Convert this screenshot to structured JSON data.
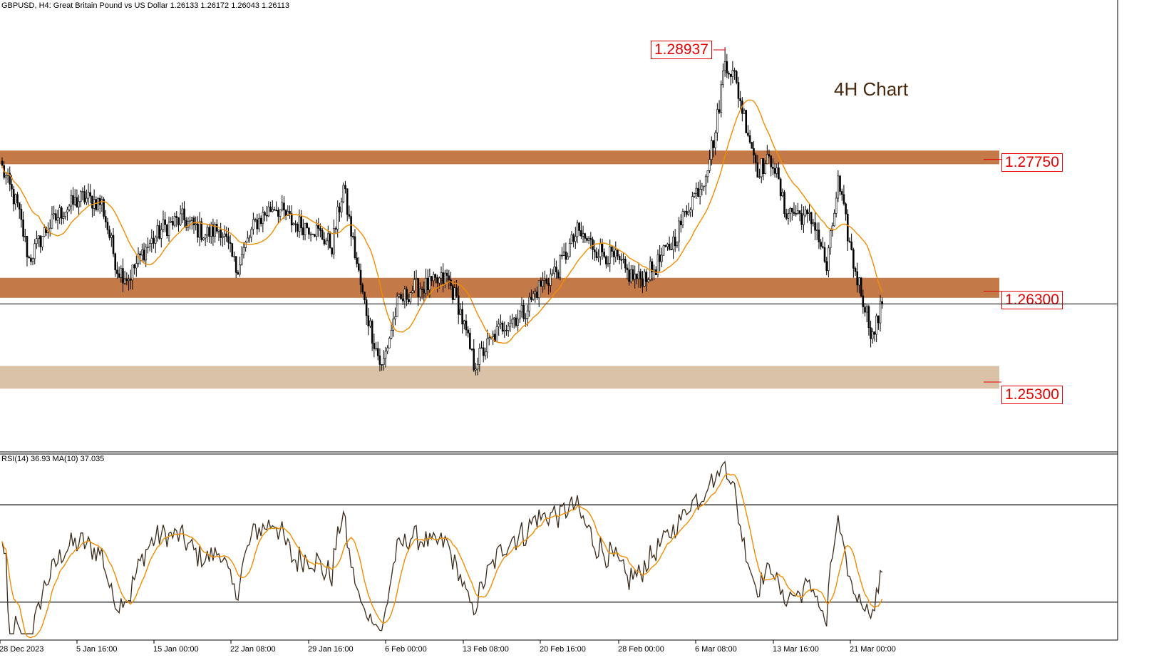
{
  "header": {
    "title": "GBPUSD, H4:  Great Britain Pound vs US Dollar  1.26133 1.26172 1.26043 1.26113",
    "rsi_label": "RSI(14) 36.93 MA(10) 37.035"
  },
  "annotation": "4H Chart",
  "colors": {
    "candle": "#000000",
    "ma": "#f28c00",
    "zone_dark": "#c47a48",
    "zone_light": "#d9c2a6",
    "level_text": "#e60000",
    "rsi_line": "#3b2a1a"
  },
  "chart_data": [
    {
      "type": "candlestick",
      "symbol": "GBPUSD",
      "timeframe": "H4",
      "ylim": [
        1.245,
        1.293
      ],
      "current_price": 1.26113,
      "high_marker": 1.28937,
      "zones": [
        {
          "low": 1.2765,
          "high": 1.278,
          "label": "1.27750",
          "value": 1.2775,
          "style": "dark"
        },
        {
          "low": 1.2618,
          "high": 1.264,
          "label": "1.26300",
          "value": 1.263,
          "style": "dark"
        },
        {
          "low": 1.2518,
          "high": 1.2543,
          "label": "1.25300",
          "value": 1.253,
          "style": "light"
        }
      ],
      "x_ticks": [
        "28 Dec 2023",
        "5 Jan 16:00",
        "15 Jan 00:00",
        "22 Jan 08:00",
        "29 Jan 16:00",
        "6 Feb 00:00",
        "13 Feb 08:00",
        "20 Feb 16:00",
        "28 Feb 00:00",
        "6 Mar 08:00",
        "13 Mar 16:00",
        "21 Mar 00:00"
      ],
      "anchors": [
        {
          "i": 0,
          "p": 1.276
        },
        {
          "i": 8,
          "p": 1.2718
        },
        {
          "i": 14,
          "p": 1.266
        },
        {
          "i": 22,
          "p": 1.269
        },
        {
          "i": 32,
          "p": 1.2715
        },
        {
          "i": 42,
          "p": 1.2728
        },
        {
          "i": 52,
          "p": 1.2722
        },
        {
          "i": 60,
          "p": 1.265
        },
        {
          "i": 66,
          "p": 1.264
        },
        {
          "i": 74,
          "p": 1.267
        },
        {
          "i": 84,
          "p": 1.2695
        },
        {
          "i": 94,
          "p": 1.2705
        },
        {
          "i": 106,
          "p": 1.2688
        },
        {
          "i": 114,
          "p": 1.2695
        },
        {
          "i": 122,
          "p": 1.265
        },
        {
          "i": 132,
          "p": 1.27
        },
        {
          "i": 142,
          "p": 1.272
        },
        {
          "i": 152,
          "p": 1.27
        },
        {
          "i": 162,
          "p": 1.2696
        },
        {
          "i": 172,
          "p": 1.2675
        },
        {
          "i": 178,
          "p": 1.274
        },
        {
          "i": 182,
          "p": 1.269
        },
        {
          "i": 188,
          "p": 1.262
        },
        {
          "i": 194,
          "p": 1.257
        },
        {
          "i": 198,
          "p": 1.254
        },
        {
          "i": 206,
          "p": 1.261
        },
        {
          "i": 214,
          "p": 1.2628
        },
        {
          "i": 224,
          "p": 1.2632
        },
        {
          "i": 232,
          "p": 1.264
        },
        {
          "i": 238,
          "p": 1.261
        },
        {
          "i": 246,
          "p": 1.2545
        },
        {
          "i": 254,
          "p": 1.2568
        },
        {
          "i": 262,
          "p": 1.259
        },
        {
          "i": 272,
          "p": 1.2602
        },
        {
          "i": 280,
          "p": 1.263
        },
        {
          "i": 290,
          "p": 1.265
        },
        {
          "i": 300,
          "p": 1.269
        },
        {
          "i": 310,
          "p": 1.2672
        },
        {
          "i": 320,
          "p": 1.266
        },
        {
          "i": 326,
          "p": 1.2645
        },
        {
          "i": 332,
          "p": 1.2638
        },
        {
          "i": 340,
          "p": 1.265
        },
        {
          "i": 350,
          "p": 1.268
        },
        {
          "i": 358,
          "p": 1.272
        },
        {
          "i": 366,
          "p": 1.275
        },
        {
          "i": 372,
          "p": 1.28
        },
        {
          "i": 377,
          "p": 1.288
        },
        {
          "i": 382,
          "p": 1.286
        },
        {
          "i": 388,
          "p": 1.281
        },
        {
          "i": 394,
          "p": 1.276
        },
        {
          "i": 402,
          "p": 1.277
        },
        {
          "i": 408,
          "p": 1.2715
        },
        {
          "i": 416,
          "p": 1.271
        },
        {
          "i": 424,
          "p": 1.27
        },
        {
          "i": 430,
          "p": 1.265
        },
        {
          "i": 436,
          "p": 1.2745
        },
        {
          "i": 444,
          "p": 1.2655
        },
        {
          "i": 450,
          "p": 1.261
        },
        {
          "i": 454,
          "p": 1.2575
        },
        {
          "i": 459,
          "p": 1.2611
        }
      ],
      "rsi": {
        "period": 14,
        "ma_period": 10,
        "value": 36.93,
        "ma_value": 37.035,
        "levels": [
          70,
          30
        ],
        "ylim": [
          15,
          90
        ]
      }
    }
  ]
}
